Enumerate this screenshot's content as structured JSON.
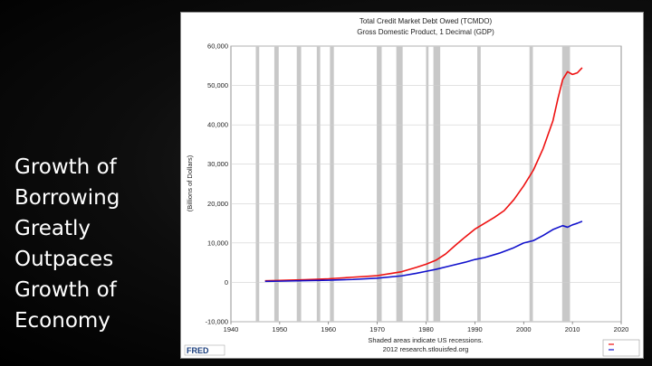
{
  "slide": {
    "title": "Growth of\nBorrowing\nGreatly\nOutpaces\nGrowth of\nEconomy"
  },
  "chart_data": {
    "type": "line",
    "title": "Total Credit Market Debt Owed (TCMDO)",
    "subtitle": "Gross Domestic Product, 1 Decimal (GDP)",
    "ylabel": "(Billions of Dollars)",
    "xlabel": "",
    "footer_note": "Shaded areas indicate US recessions.",
    "footer_credit": "2012 research.stlouisfed.org",
    "brand": "FRED",
    "xlim": [
      1940,
      2020
    ],
    "ylim": [
      -10000,
      60000
    ],
    "x_ticks": [
      1940,
      1950,
      1960,
      1970,
      1980,
      1990,
      2000,
      2010,
      2020
    ],
    "y_ticks": [
      -10000,
      0,
      10000,
      20000,
      30000,
      40000,
      50000,
      60000
    ],
    "y_tick_labels": [
      "-10,000",
      "0",
      "10,000",
      "20,000",
      "30,000",
      "40,000",
      "50,000",
      "60,000"
    ],
    "grid": true,
    "recessions": [
      [
        1945.1,
        1945.8
      ],
      [
        1948.9,
        1949.8
      ],
      [
        1953.5,
        1954.4
      ],
      [
        1957.6,
        1958.3
      ],
      [
        1960.3,
        1961.1
      ],
      [
        1969.9,
        1970.9
      ],
      [
        1973.9,
        1975.2
      ],
      [
        1980.0,
        1980.5
      ],
      [
        1981.5,
        1982.9
      ],
      [
        1990.5,
        1991.2
      ],
      [
        2001.2,
        2001.9
      ],
      [
        2007.9,
        2009.5
      ]
    ],
    "series": [
      {
        "name": "TCMDO",
        "color": "#ee1111",
        "points": [
          [
            1947,
            400
          ],
          [
            1950,
            480
          ],
          [
            1955,
            650
          ],
          [
            1960,
            900
          ],
          [
            1965,
            1300
          ],
          [
            1970,
            1700
          ],
          [
            1973,
            2300
          ],
          [
            1975,
            2700
          ],
          [
            1978,
            3800
          ],
          [
            1980,
            4600
          ],
          [
            1982,
            5600
          ],
          [
            1984,
            7200
          ],
          [
            1986,
            9400
          ],
          [
            1988,
            11500
          ],
          [
            1990,
            13500
          ],
          [
            1992,
            15000
          ],
          [
            1994,
            16500
          ],
          [
            1996,
            18200
          ],
          [
            1998,
            21000
          ],
          [
            2000,
            24500
          ],
          [
            2002,
            28500
          ],
          [
            2004,
            34000
          ],
          [
            2006,
            41000
          ],
          [
            2007,
            46500
          ],
          [
            2008,
            51500
          ],
          [
            2009,
            53500
          ],
          [
            2010,
            52800
          ],
          [
            2011,
            53200
          ],
          [
            2012,
            54500
          ]
        ]
      },
      {
        "name": "GDP",
        "color": "#1111cc",
        "points": [
          [
            1947,
            250
          ],
          [
            1950,
            300
          ],
          [
            1955,
            420
          ],
          [
            1960,
            550
          ],
          [
            1965,
            730
          ],
          [
            1970,
            1050
          ],
          [
            1975,
            1650
          ],
          [
            1978,
            2300
          ],
          [
            1980,
            2800
          ],
          [
            1982,
            3300
          ],
          [
            1985,
            4200
          ],
          [
            1988,
            5100
          ],
          [
            1990,
            5800
          ],
          [
            1992,
            6300
          ],
          [
            1995,
            7400
          ],
          [
            1998,
            8800
          ],
          [
            2000,
            10000
          ],
          [
            2002,
            10600
          ],
          [
            2004,
            11900
          ],
          [
            2006,
            13400
          ],
          [
            2008,
            14400
          ],
          [
            2009,
            14000
          ],
          [
            2010,
            14600
          ],
          [
            2011,
            15000
          ],
          [
            2012,
            15500
          ]
        ]
      }
    ]
  }
}
